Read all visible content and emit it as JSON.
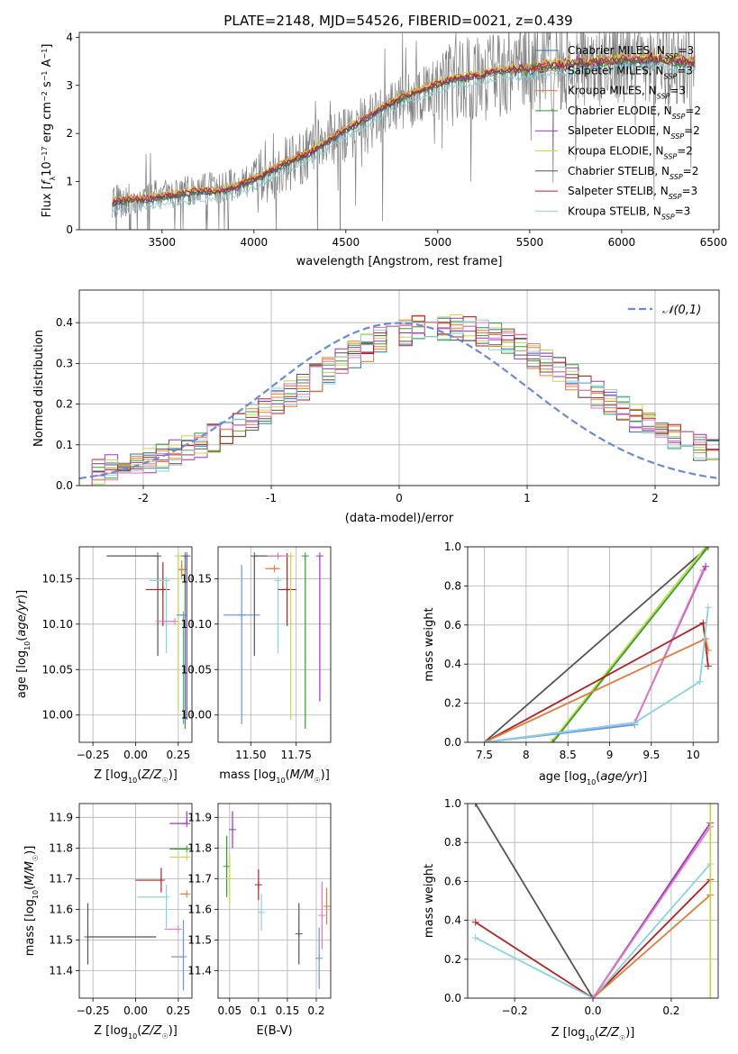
{
  "figure": {
    "title": "PLATE=2148, MJD=54526, FIBERID=0021, z=0.439",
    "colors": {
      "chab_miles": "#1f77b4",
      "salp_miles": "#ff7f0e",
      "krou_miles": "#e07b39",
      "chab_elodie": "#2ca02c",
      "salp_elodie": "#9b30c8",
      "krou_elodie": "#c8d840",
      "chab_stelib": "#555555",
      "salp_stelib": "#b22222",
      "krou_stelib": "#88d4dc",
      "pink": "#e377c2",
      "blue": "#6495ed",
      "normal": "#6a8ad8",
      "data": "#808080"
    }
  },
  "chart_data": [
    {
      "id": "spectrum",
      "type": "line",
      "title": "PLATE=2148, MJD=54526, FIBERID=0021, z=0.439",
      "xlabel": "wavelength [Angstrom, rest frame]",
      "ylabel": "Flux [f_λ 10^-17 erg cm^-2 s^-1 A^-1]",
      "xlim": [
        3050,
        6530
      ],
      "ylim": [
        0,
        4.1
      ],
      "xticks": [
        3500,
        4000,
        4500,
        5000,
        5500,
        6000,
        6500
      ],
      "yticks": [
        0,
        1,
        2,
        3,
        4
      ],
      "legend": [
        {
          "label": "Chabrier MILES, N_SSP=3",
          "color": "#1f77b4"
        },
        {
          "label": "Salpeter MILES, N_SSP=3",
          "color": "#ff7f0e"
        },
        {
          "label": "Kroupa MILES, N_SSP=3",
          "color": "#e07b39"
        },
        {
          "label": "Chabrier ELODIE, N_SSP=2",
          "color": "#2ca02c"
        },
        {
          "label": "Salpeter ELODIE, N_SSP=2",
          "color": "#9b30c8"
        },
        {
          "label": "Kroupa ELODIE, N_SSP=2",
          "color": "#c8d840"
        },
        {
          "label": "Chabrier STELIB, N_SSP=2",
          "color": "#555555"
        },
        {
          "label": "Salpeter STELIB, N_SSP=3",
          "color": "#b22222"
        },
        {
          "label": "Kroupa STELIB, N_SSP=3",
          "color": "#88d4dc"
        }
      ],
      "model_curve": {
        "x": [
          3230,
          3300,
          3400,
          3500,
          3600,
          3700,
          3800,
          3900,
          4000,
          4100,
          4200,
          4300,
          4400,
          4500,
          4600,
          4700,
          4800,
          4900,
          5000,
          5100,
          5200,
          5300,
          5400,
          5500,
          5600,
          5700,
          5800,
          5900,
          6000,
          6100,
          6200,
          6300
        ],
        "y": [
          0.58,
          0.63,
          0.65,
          0.7,
          0.75,
          0.82,
          0.8,
          0.9,
          1.05,
          1.25,
          1.45,
          1.6,
          1.85,
          2.1,
          2.3,
          2.55,
          2.75,
          2.9,
          3.05,
          3.15,
          3.2,
          3.3,
          3.35,
          3.35,
          3.42,
          3.45,
          3.5,
          3.5,
          3.55,
          3.55,
          3.55,
          3.5
        ]
      },
      "data_envelope": {
        "x": [
          3230,
          3500,
          4000,
          4500,
          5000,
          5500,
          6000,
          6400
        ],
        "y": [
          0.6,
          0.7,
          1.0,
          2.0,
          3.0,
          3.3,
          3.5,
          3.5
        ]
      }
    },
    {
      "id": "residuals",
      "type": "area",
      "xlabel": "(data-model)/error",
      "ylabel": "Normed distribution",
      "xlim": [
        -2.5,
        2.5
      ],
      "ylim": [
        0,
        0.48
      ],
      "xticks": [
        -2,
        -1,
        0,
        1,
        2
      ],
      "yticks": [
        0.0,
        0.1,
        0.2,
        0.3,
        0.4
      ],
      "legend": [
        {
          "label": "𝒩(0,1)",
          "color": "#6a8ad8"
        }
      ],
      "bin_width": 0.1
    },
    {
      "id": "age-vs-Z",
      "type": "scatter",
      "xlabel": "Z [log10(Z/Z☉)]",
      "ylabel": "age  [log10(age/yr)]",
      "xlim": [
        -0.33,
        0.33
      ],
      "ylim": [
        9.97,
        10.185
      ],
      "xticks": [
        -0.25,
        0.0,
        0.25
      ],
      "xticklabels": [
        "−0.25",
        "0.00",
        "0.25"
      ],
      "yticks": [
        10.0,
        10.05,
        10.1,
        10.15
      ],
      "yticklabels": [
        "10.00",
        "10.05",
        "10.10",
        "10.15"
      ],
      "points": [
        {
          "x": 0.13,
          "xerr": [
            0.3,
            0.0
          ],
          "y": 10.175,
          "yerr": [
            0.11,
            0.0
          ],
          "color": "#555555"
        },
        {
          "x": 0.16,
          "xerr": [
            0.1,
            0.04
          ],
          "y": 10.138,
          "yerr": [
            0.04,
            0.03
          ],
          "color": "#b22222"
        },
        {
          "x": 0.18,
          "xerr": [
            0.1,
            0.0
          ],
          "y": 10.148,
          "yerr": [
            0.08,
            0.0
          ],
          "color": "#88d4dc"
        },
        {
          "x": 0.23,
          "xerr": [
            0.11,
            0.0
          ],
          "y": 10.103,
          "yerr": [
            0.0,
            0.0
          ],
          "color": "#e377c2"
        },
        {
          "x": 0.25,
          "xerr": [
            0.0,
            0.05
          ],
          "y": 10.175,
          "yerr": [
            0.17,
            0.0
          ],
          "color": "#c8d840"
        },
        {
          "x": 0.27,
          "xerr": [
            0.02,
            0.03
          ],
          "y": 10.16,
          "yerr": [
            0.01,
            0.01
          ],
          "color": "#e07b39"
        },
        {
          "x": 0.28,
          "xerr": [
            0.04,
            0.0
          ],
          "y": 10.11,
          "yerr": [
            0.12,
            0.0
          ],
          "color": "#6495ed"
        },
        {
          "x": 0.29,
          "xerr": [
            0.0,
            0.0
          ],
          "y": 10.175,
          "yerr": [
            0.19,
            0.0
          ],
          "color": "#2ca02c"
        },
        {
          "x": 0.3,
          "xerr": [
            0.0,
            0.0
          ],
          "y": 10.175,
          "yerr": [
            0.18,
            0.0
          ],
          "color": "#9b30c8"
        }
      ]
    },
    {
      "id": "age-vs-mass",
      "type": "scatter",
      "xlabel": "mass [log10(M/M☉)]",
      "xlim": [
        11.32,
        11.94
      ],
      "ylim": [
        9.97,
        10.185
      ],
      "xticks": [
        11.5,
        11.75
      ],
      "xticklabels": [
        "11.50",
        "11.75"
      ],
      "yticks": [
        10.0,
        10.05,
        10.1,
        10.15
      ],
      "yticklabels": [
        "10.00",
        "10.05",
        "10.10",
        "10.15"
      ],
      "points": [
        {
          "x": 11.45,
          "xerr": [
            0.1,
            0.1
          ],
          "y": 10.11,
          "yerr": [
            0.12,
            0.055
          ],
          "color": "#6495ed"
        },
        {
          "x": 11.52,
          "xerr": [
            0.0,
            0.14
          ],
          "y": 10.175,
          "yerr": [
            0.11,
            0.0
          ],
          "color": "#555555"
        },
        {
          "x": 11.63,
          "xerr": [
            0.05,
            0.03
          ],
          "y": 10.161,
          "yerr": [
            0.0,
            0.0
          ],
          "color": "#e07b39"
        },
        {
          "x": 11.65,
          "xerr": [
            0.0,
            0.0
          ],
          "y": 10.148,
          "yerr": [
            0.08,
            0.0
          ],
          "color": "#88d4dc"
        },
        {
          "x": 11.7,
          "xerr": [
            0.05,
            0.05
          ],
          "y": 10.138,
          "yerr": [
            0.04,
            0.04
          ],
          "color": "#b22222"
        },
        {
          "x": 11.72,
          "xerr": [
            0.0,
            0.0
          ],
          "y": 10.175,
          "yerr": [
            0.18,
            0.0
          ],
          "color": "#c8d840"
        },
        {
          "x": 11.8,
          "xerr": [
            0.0,
            0.0
          ],
          "y": 10.175,
          "yerr": [
            0.19,
            0.0
          ],
          "color": "#2ca02c"
        },
        {
          "x": 11.88,
          "xerr": [
            0.0,
            0.0
          ],
          "y": 10.175,
          "yerr": [
            0.16,
            0.0
          ],
          "color": "#9b30c8"
        },
        {
          "x": 11.65,
          "xerr": [
            0.06,
            0.06
          ],
          "y": 10.175,
          "yerr": [
            0.0,
            0.0
          ],
          "color": "#e377c2"
        }
      ]
    },
    {
      "id": "mass-weight-vs-age",
      "type": "line",
      "xlabel": "age  [log10(age/yr)]",
      "ylabel": "mass weight",
      "xlim": [
        7.3,
        10.3
      ],
      "ylim": [
        0,
        1
      ],
      "xticks": [
        7.5,
        8.0,
        8.5,
        9.0,
        9.5,
        10.0
      ],
      "yticks": [
        0.0,
        0.2,
        0.4,
        0.6,
        0.8,
        1.0
      ],
      "series": [
        {
          "color": "#555555",
          "x": [
            7.5,
            10.18
          ],
          "y": [
            0.0,
            1.0
          ]
        },
        {
          "color": "#c8d840",
          "x": [
            8.3,
            10.15
          ],
          "y": [
            0.0,
            1.0
          ]
        },
        {
          "color": "#2ca02c",
          "x": [
            8.32,
            10.18
          ],
          "y": [
            0.0,
            1.0
          ]
        },
        {
          "color": "#9b30c8",
          "x": [
            7.5,
            9.3,
            10.15
          ],
          "y": [
            0.0,
            0.1,
            0.9
          ]
        },
        {
          "color": "#e377c2",
          "x": [
            7.5,
            9.3,
            10.12
          ],
          "y": [
            0.0,
            0.1,
            0.88
          ]
        },
        {
          "color": "#6495ed",
          "x": [
            7.5,
            9.3
          ],
          "y": [
            0.0,
            0.09
          ]
        },
        {
          "color": "#b22222",
          "x": [
            7.5,
            10.12,
            10.18
          ],
          "y": [
            0.0,
            0.61,
            0.39
          ]
        },
        {
          "color": "#e07b39",
          "x": [
            7.5,
            10.15,
            10.18
          ],
          "y": [
            0.0,
            0.53,
            0.47
          ]
        },
        {
          "color": "#88d4dc",
          "x": [
            7.5,
            9.3,
            10.08,
            10.18
          ],
          "y": [
            0.0,
            0.1,
            0.31,
            0.69
          ]
        }
      ]
    },
    {
      "id": "mass-vs-Z",
      "type": "scatter",
      "xlabel": "Z [log10(Z/Z☉)]",
      "ylabel": "mass [log10(M/M☉)]",
      "xlim": [
        -0.33,
        0.33
      ],
      "ylim": [
        11.31,
        11.945
      ],
      "xticks": [
        -0.25,
        0.0,
        0.25
      ],
      "xticklabels": [
        "−0.25",
        "0.00",
        "0.25"
      ],
      "yticks": [
        11.4,
        11.5,
        11.6,
        11.7,
        11.8,
        11.9
      ],
      "points": [
        {
          "x": -0.28,
          "xerr": [
            0.0,
            0.4
          ],
          "y": 11.51,
          "yerr": [
            0.09,
            0.11
          ],
          "color": "#555555"
        },
        {
          "x": 0.15,
          "xerr": [
            0.15,
            0.0
          ],
          "y": 11.695,
          "yerr": [
            0.04,
            0.04
          ],
          "color": "#b22222"
        },
        {
          "x": 0.18,
          "xerr": [
            0.17,
            0.0
          ],
          "y": 11.64,
          "yerr": [
            0.1,
            0.04
          ],
          "color": "#88d4dc"
        },
        {
          "x": 0.25,
          "xerr": [
            0.08,
            0.0
          ],
          "y": 11.535,
          "yerr": [
            0.0,
            0.0
          ],
          "color": "#e377c2"
        },
        {
          "x": 0.28,
          "xerr": [
            0.07,
            0.0
          ],
          "y": 11.445,
          "yerr": [
            0.11,
            0.12
          ],
          "color": "#6495ed"
        },
        {
          "x": 0.3,
          "xerr": [
            0.04,
            0.0
          ],
          "y": 11.65,
          "yerr": [
            0.0,
            0.0
          ],
          "color": "#e07b39"
        },
        {
          "x": 0.3,
          "xerr": [
            0.1,
            0.0
          ],
          "y": 11.88,
          "yerr": [
            0.0,
            0.04
          ],
          "color": "#9b30c8"
        },
        {
          "x": 0.3,
          "xerr": [
            0.1,
            0.0
          ],
          "y": 11.797,
          "yerr": [
            0.0,
            0.0
          ],
          "color": "#2ca02c"
        },
        {
          "x": 0.3,
          "xerr": [
            0.1,
            0.0
          ],
          "y": 11.77,
          "yerr": [
            0.0,
            0.0
          ],
          "color": "#c8d840"
        }
      ]
    },
    {
      "id": "mass-vs-ebv",
      "type": "scatter",
      "xlabel": "E(B-V)",
      "xlim": [
        0.03,
        0.225
      ],
      "ylim": [
        11.31,
        11.945
      ],
      "xticks": [
        0.05,
        0.1,
        0.15,
        0.2
      ],
      "yticks": [
        11.4,
        11.5,
        11.6,
        11.7,
        11.8,
        11.9
      ],
      "points": [
        {
          "x": 0.045,
          "y": 11.74,
          "yerr": [
            0.1,
            0.1
          ],
          "color": "#2ca02c"
        },
        {
          "x": 0.05,
          "y": 11.7,
          "yerr": [
            0.08,
            0.08
          ],
          "color": "#c8d840"
        },
        {
          "x": 0.055,
          "y": 11.86,
          "yerr": [
            0.06,
            0.06
          ],
          "color": "#9b30c8"
        },
        {
          "x": 0.1,
          "y": 11.68,
          "yerr": [
            0.05,
            0.05
          ],
          "color": "#b22222"
        },
        {
          "x": 0.105,
          "y": 11.59,
          "yerr": [
            0.06,
            0.06
          ],
          "color": "#88d4dc"
        },
        {
          "x": 0.17,
          "y": 11.52,
          "yerr": [
            0.1,
            0.1
          ],
          "color": "#555555"
        },
        {
          "x": 0.205,
          "y": 11.44,
          "yerr": [
            0.1,
            0.1
          ],
          "color": "#6495ed"
        },
        {
          "x": 0.21,
          "y": 11.58,
          "yerr": [
            0.11,
            0.11
          ],
          "color": "#e377c2"
        },
        {
          "x": 0.218,
          "y": 11.61,
          "yerr": [
            0.06,
            0.06
          ],
          "color": "#e07b39"
        }
      ]
    },
    {
      "id": "mass-weight-vs-Z",
      "type": "line",
      "xlabel": "Z [log10(Z/Z☉)]",
      "ylabel": "mass weight",
      "xlim": [
        -0.32,
        0.32
      ],
      "ylim": [
        0,
        1
      ],
      "xticks": [
        -0.2,
        0.0,
        0.2
      ],
      "xticklabels": [
        "−0.2",
        "0.0",
        "0.2"
      ],
      "yticks": [
        0.0,
        0.2,
        0.4,
        0.6,
        0.8,
        1.0
      ],
      "series": [
        {
          "color": "#555555",
          "x": [
            -0.3,
            0.0
          ],
          "y": [
            1.0,
            0.0
          ]
        },
        {
          "color": "#b22222",
          "x": [
            -0.3,
            0.0,
            0.3
          ],
          "y": [
            0.39,
            0.0,
            0.61
          ]
        },
        {
          "color": "#88d4dc",
          "x": [
            -0.3,
            0.0,
            0.3
          ],
          "y": [
            0.31,
            0.0,
            0.69
          ]
        },
        {
          "color": "#e07b39",
          "x": [
            0.0,
            0.3
          ],
          "y": [
            0.0,
            0.53
          ]
        },
        {
          "color": "#9b30c8",
          "x": [
            0.0,
            0.3
          ],
          "y": [
            0.0,
            0.9
          ]
        },
        {
          "color": "#e377c2",
          "x": [
            0.0,
            0.3
          ],
          "y": [
            0.0,
            0.88
          ]
        },
        {
          "color": "#c8d840",
          "x": [
            0.3,
            0.3
          ],
          "y": [
            0.0,
            1.0
          ]
        }
      ]
    }
  ]
}
